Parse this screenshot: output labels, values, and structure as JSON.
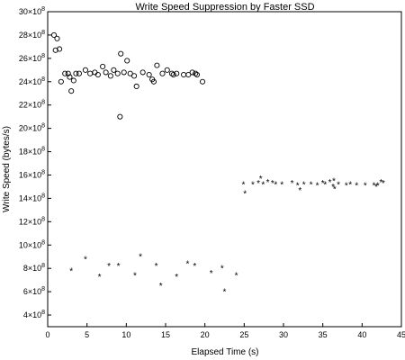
{
  "chart_data": {
    "type": "scatter",
    "title": "Write Speed Suppression by Faster SSD",
    "xlabel": "Elapsed Time (s)",
    "ylabel": "Write Speed (bytes/s)",
    "xlim": [
      0,
      45
    ],
    "ylim": [
      300000000,
      3000000000
    ],
    "grid": false,
    "x_ticks": [
      0,
      5,
      10,
      15,
      20,
      25,
      30,
      35,
      40,
      45
    ],
    "x_tick_labels": [
      "0",
      "5",
      "10",
      "15",
      "20",
      "25",
      "30",
      "35",
      "40",
      "45"
    ],
    "y_ticks": [
      400000000,
      600000000,
      800000000,
      1000000000,
      1200000000,
      1400000000,
      1600000000,
      1800000000,
      2000000000,
      2200000000,
      2400000000,
      2600000000,
      2800000000,
      3000000000
    ],
    "y_tick_mantissa": [
      "4×10",
      "6×10",
      "8×10",
      "10×10",
      "12×10",
      "14×10",
      "16×10",
      "18×10",
      "20×10",
      "22×10",
      "24×10",
      "26×10",
      "28×10",
      "30×10"
    ],
    "y_tick_exponent": "8",
    "series": [
      {
        "marker": "circle",
        "color": "#000000",
        "points": [
          [
            0.8,
            2800000000
          ],
          [
            1.0,
            2670000000
          ],
          [
            1.2,
            2770000000
          ],
          [
            1.5,
            2680000000
          ],
          [
            1.7,
            2400000000
          ],
          [
            2.2,
            2470000000
          ],
          [
            2.6,
            2470000000
          ],
          [
            2.8,
            2440000000
          ],
          [
            3.0,
            2320000000
          ],
          [
            3.3,
            2410000000
          ],
          [
            3.6,
            2470000000
          ],
          [
            4.0,
            2470000000
          ],
          [
            4.8,
            2500000000
          ],
          [
            5.4,
            2470000000
          ],
          [
            6.0,
            2480000000
          ],
          [
            6.4,
            2460000000
          ],
          [
            7.0,
            2530000000
          ],
          [
            7.4,
            2480000000
          ],
          [
            8.0,
            2450000000
          ],
          [
            8.4,
            2500000000
          ],
          [
            8.9,
            2470000000
          ],
          [
            9.3,
            2640000000
          ],
          [
            9.7,
            2480000000
          ],
          [
            10.1,
            2580000000
          ],
          [
            10.5,
            2470000000
          ],
          [
            11.0,
            2450000000
          ],
          [
            11.3,
            2360000000
          ],
          [
            12.1,
            2480000000
          ],
          [
            12.9,
            2460000000
          ],
          [
            13.3,
            2420000000
          ],
          [
            13.9,
            2540000000
          ],
          [
            14.6,
            2470000000
          ],
          [
            15.2,
            2500000000
          ],
          [
            15.8,
            2470000000
          ],
          [
            16.4,
            2470000000
          ],
          [
            17.3,
            2460000000
          ],
          [
            17.9,
            2460000000
          ],
          [
            18.4,
            2480000000
          ],
          [
            19.0,
            2460000000
          ],
          [
            19.7,
            2400000000
          ],
          [
            9.2,
            2100000000
          ],
          [
            13.5,
            2400000000
          ],
          [
            16.0,
            2460000000
          ],
          [
            18.8,
            2470000000
          ]
        ]
      },
      {
        "marker": "star",
        "color": "#000000",
        "points": [
          [
            3.0,
            780000000
          ],
          [
            4.8,
            880000000
          ],
          [
            6.6,
            730000000
          ],
          [
            7.8,
            820000000
          ],
          [
            9.0,
            820000000
          ],
          [
            11.1,
            740000000
          ],
          [
            11.8,
            900000000
          ],
          [
            13.8,
            820000000
          ],
          [
            14.4,
            650000000
          ],
          [
            16.4,
            730000000
          ],
          [
            17.8,
            840000000
          ],
          [
            18.7,
            820000000
          ],
          [
            20.8,
            760000000
          ],
          [
            22.2,
            800000000
          ],
          [
            22.5,
            600000000
          ],
          [
            24.0,
            740000000
          ],
          [
            24.9,
            1520000000
          ],
          [
            25.1,
            1440000000
          ],
          [
            26.1,
            1520000000
          ],
          [
            26.8,
            1530000000
          ],
          [
            27.1,
            1570000000
          ],
          [
            27.4,
            1520000000
          ],
          [
            28.0,
            1540000000
          ],
          [
            28.6,
            1530000000
          ],
          [
            29.0,
            1520000000
          ],
          [
            29.8,
            1520000000
          ],
          [
            31.1,
            1530000000
          ],
          [
            31.8,
            1510000000
          ],
          [
            32.1,
            1470000000
          ],
          [
            32.6,
            1520000000
          ],
          [
            33.5,
            1520000000
          ],
          [
            34.3,
            1510000000
          ],
          [
            35.0,
            1530000000
          ],
          [
            35.3,
            1520000000
          ],
          [
            35.9,
            1540000000
          ],
          [
            36.3,
            1500000000
          ],
          [
            36.4,
            1550000000
          ],
          [
            37.0,
            1520000000
          ],
          [
            38.0,
            1510000000
          ],
          [
            39.3,
            1510000000
          ],
          [
            40.4,
            1510000000
          ],
          [
            41.5,
            1510000000
          ],
          [
            41.8,
            1500000000
          ],
          [
            42.0,
            1510000000
          ],
          [
            42.4,
            1540000000
          ],
          [
            42.7,
            1530000000
          ],
          [
            36.5,
            1480000000
          ],
          [
            38.5,
            1520000000
          ]
        ]
      }
    ]
  }
}
